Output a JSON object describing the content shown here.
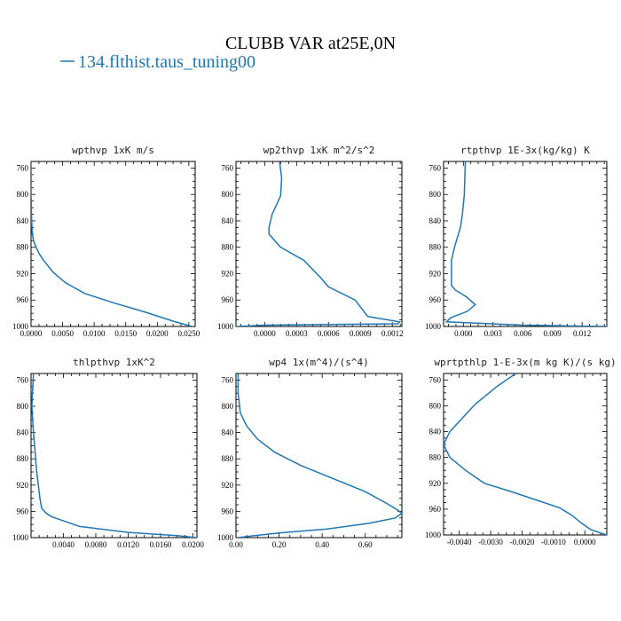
{
  "title": "CLUBB VAR at25E,0N",
  "legend": {
    "label": "134.flthist.taus_tuning00",
    "color": "#1f77b4"
  },
  "series_color": "#1f77b4",
  "chart_data": [
    {
      "type": "line",
      "title": "wpthvp   1xK m/s",
      "xlim": [
        0,
        0.026
      ],
      "xticks": [
        0,
        0.005,
        0.01,
        0.015,
        0.02,
        0.025
      ],
      "xtick_labels": [
        "0.0000",
        "0.0050",
        "0.0100",
        "0.0150",
        "0.0200",
        "0.0250"
      ],
      "ylim": [
        1000,
        750
      ],
      "yticks": [
        760,
        800,
        840,
        880,
        920,
        960,
        1000
      ],
      "x": [
        0,
        0,
        0.0001,
        0.0002,
        0.0004,
        0.0008,
        0.0013,
        0.002,
        0.0035,
        0.0055,
        0.0085,
        0.013,
        0.018,
        0.0225,
        0.0255
      ],
      "y": [
        750,
        800,
        840,
        860,
        870,
        880,
        890,
        900,
        918,
        934,
        950,
        964,
        978,
        992,
        1000
      ]
    },
    {
      "type": "line",
      "title": "wp2thvp   1xK m^2/s^2",
      "xlim": [
        -0.00027,
        0.00129
      ],
      "xticks": [
        0,
        0.0003,
        0.0006,
        0.0009,
        0.0012
      ],
      "xtick_labels": [
        "0.0000",
        "0.0003",
        "0.0006",
        "0.0009",
        "0.0012"
      ],
      "ylim": [
        1000,
        750
      ],
      "yticks": [
        760,
        800,
        840,
        880,
        920,
        960,
        1000
      ],
      "x": [
        0.00014,
        0.00016,
        0.00015,
        7e-05,
        4e-05,
        4e-05,
        0.00015,
        0.00037,
        0.00052,
        0.0006,
        0.00085,
        0.00097,
        0.00127,
        0.00125,
        0.0,
        -0.00027
      ],
      "y": [
        750,
        775,
        802,
        830,
        850,
        860,
        880,
        900,
        925,
        940,
        960,
        985,
        993,
        996,
        998,
        1000
      ]
    },
    {
      "type": "line",
      "title": "rtpthvp   1E-3x(kg/kg) K",
      "xlim": [
        -0.002,
        0.0145
      ],
      "xticks": [
        0,
        0.003,
        0.006,
        0.009,
        0.012
      ],
      "xtick_labels": [
        "0.000",
        "0.003",
        "0.006",
        "0.009",
        "0.012"
      ],
      "ylim": [
        1000,
        750
      ],
      "yticks": [
        760,
        800,
        840,
        880,
        920,
        960,
        1000
      ],
      "x": [
        0.0002,
        0.0001,
        -0.0001,
        -0.0003,
        -0.0006,
        -0.0009,
        -0.0012,
        -0.0012,
        -0.0012,
        -0.0008,
        0.0003,
        0.0012,
        0.0004,
        -0.0013,
        -0.0017,
        0.006,
        0.0145
      ],
      "y": [
        750,
        800,
        830,
        850,
        865,
        880,
        900,
        920,
        938,
        945,
        955,
        967,
        977,
        987,
        993,
        998,
        1000
      ]
    },
    {
      "type": "line",
      "title": "thlpthvp   1xK^2",
      "xlim": [
        0,
        0.0205
      ],
      "xticks": [
        0.004,
        0.008,
        0.012,
        0.016,
        0.02
      ],
      "xtick_labels": [
        "0.0040",
        "0.0080",
        "0.0120",
        "0.0160",
        "0.0200"
      ],
      "ylim": [
        1000,
        750
      ],
      "yticks": [
        760,
        800,
        840,
        880,
        920,
        960,
        1000
      ],
      "x": [
        0.0003,
        0.0001,
        0.0003,
        0.0005,
        0.0007,
        0.0009,
        0.0011,
        0.0013,
        0.0018,
        0.0025,
        0.006,
        0.012,
        0.018,
        0.0205
      ],
      "y": [
        750,
        800,
        840,
        870,
        900,
        920,
        940,
        955,
        962,
        968,
        983,
        992,
        997,
        1000
      ]
    },
    {
      "type": "line",
      "title": "wp4   1x(m^4)/(s^4)",
      "xlim": [
        0,
        0.77
      ],
      "xticks": [
        0,
        0.2,
        0.4,
        0.6
      ],
      "xtick_labels": [
        "0.00",
        "0.20",
        "0.40",
        "0.60"
      ],
      "ylim": [
        1000,
        750
      ],
      "yticks": [
        760,
        800,
        840,
        880,
        920,
        960,
        1000
      ],
      "x": [
        0.01,
        0.01,
        0.02,
        0.05,
        0.1,
        0.18,
        0.3,
        0.45,
        0.6,
        0.7,
        0.75,
        0.77,
        0.74,
        0.62,
        0.42,
        0.2,
        0.06,
        0.01
      ],
      "y": [
        750,
        780,
        810,
        830,
        850,
        870,
        890,
        910,
        930,
        948,
        958,
        963,
        970,
        978,
        987,
        993,
        998,
        1000
      ]
    },
    {
      "type": "line",
      "title": "wprtpthlp   1-E-3x(m kg K)/(s kg)",
      "xlim": [
        -0.0045,
        0.0007
      ],
      "xticks": [
        -0.004,
        -0.003,
        -0.002,
        -0.001,
        0
      ],
      "xtick_labels": [
        "-0.0040",
        "-0.0030",
        "-0.0020",
        "-0.0010",
        "0.0000"
      ],
      "ylim": [
        1000,
        750
      ],
      "yticks": [
        760,
        800,
        840,
        880,
        920,
        960,
        1000
      ],
      "x": [
        -0.0022,
        -0.0028,
        -0.0035,
        -0.0043,
        -0.0045,
        -0.0043,
        -0.0038,
        -0.0032,
        -0.0024,
        -0.0016,
        -0.0008,
        -0.0004,
        -0.0001,
        0.0002,
        0.0007
      ],
      "y": [
        750,
        770,
        798,
        840,
        860,
        880,
        900,
        920,
        932,
        945,
        958,
        970,
        982,
        992,
        1000
      ]
    }
  ]
}
